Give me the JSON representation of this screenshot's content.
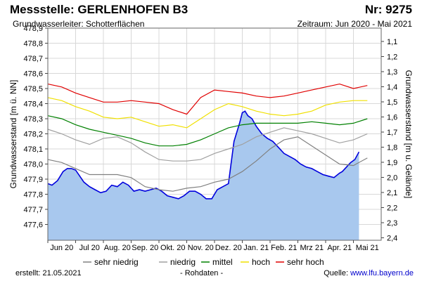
{
  "header": {
    "title": "Messstelle: GERLENHOFEN B3",
    "number": "Nr: 9275",
    "aquifer": "Grundwasserleiter:   Schotterflächen",
    "period": "Zeitraum: Jun 2020 - Mai 2021"
  },
  "footer": {
    "created": "erstellt:  21.05.2021",
    "raw": "- Rohdaten -",
    "source_label": "Quelle: ",
    "source_url": "www.lfu.bayern.de"
  },
  "colors": {
    "sehr_niedrig": "#808080",
    "niedrig": "#a0a0a0",
    "mittel": "#008000",
    "hoch": "#f0e000",
    "sehr_hoch": "#e00000",
    "measured_line": "#0000dd",
    "measured_fill": "#a8c8ee"
  },
  "chart_data": {
    "type": "area",
    "ylabel": "Grundwasserstand [m ü. NN]",
    "y2label": "Grundwasserstand [m u. Gelände]",
    "ylim": [
      477.5,
      478.9
    ],
    "y_ticks": [
      "478,9",
      "478,8",
      "478,7",
      "478,6",
      "478,5",
      "478,4",
      "478,3",
      "478,2",
      "478,1",
      "478,0",
      "477,9",
      "477,8",
      "477,7",
      "477,6"
    ],
    "y2_ticks": [
      "1,1",
      "1,2",
      "1,3",
      "1,4",
      "1,5",
      "1,6",
      "1,7",
      "1,8",
      "1,9",
      "2,0",
      "2,1",
      "2,2",
      "2,3",
      "2,4"
    ],
    "x_ticks": [
      "Jun 20",
      "Jul 20",
      "Aug. 20",
      "Sep. 20",
      "Okt. 20",
      "Nov. 20",
      "Dez. 20",
      "Jan. 21",
      "Feb. 21",
      "Mrz 21",
      "Apr. 21",
      "Mai 21"
    ],
    "grid": true,
    "legend_position": "bottom",
    "legend": [
      {
        "name": "sehr niedrig",
        "key": "sehr_niedrig"
      },
      {
        "name": "niedrig",
        "key": "niedrig"
      },
      {
        "name": "mittel",
        "key": "mittel"
      },
      {
        "name": "hoch",
        "key": "hoch"
      },
      {
        "name": "sehr hoch",
        "key": "sehr_hoch"
      }
    ],
    "x": [
      0,
      0.5,
      1,
      1.5,
      2,
      2.5,
      3,
      3.5,
      4,
      4.5,
      5,
      5.5,
      6,
      6.5,
      7,
      7.5,
      8,
      8.5,
      9,
      9.5,
      10,
      10.5,
      11,
      11.5
    ],
    "series": [
      {
        "key": "sehr_hoch",
        "values": [
          478.53,
          478.51,
          478.47,
          478.44,
          478.41,
          478.41,
          478.42,
          478.41,
          478.4,
          478.36,
          478.33,
          478.44,
          478.49,
          478.48,
          478.47,
          478.45,
          478.44,
          478.45,
          478.47,
          478.49,
          478.51,
          478.53,
          478.5,
          478.52
        ]
      },
      {
        "key": "hoch",
        "values": [
          478.44,
          478.42,
          478.38,
          478.35,
          478.31,
          478.3,
          478.31,
          478.28,
          478.25,
          478.26,
          478.24,
          478.3,
          478.36,
          478.4,
          478.38,
          478.35,
          478.33,
          478.32,
          478.33,
          478.35,
          478.39,
          478.41,
          478.42,
          478.42
        ]
      },
      {
        "key": "mittel",
        "values": [
          478.32,
          478.3,
          478.26,
          478.23,
          478.21,
          478.19,
          478.17,
          478.14,
          478.12,
          478.12,
          478.13,
          478.16,
          478.2,
          478.24,
          478.26,
          478.27,
          478.27,
          478.27,
          478.27,
          478.28,
          478.27,
          478.26,
          478.27,
          478.3
        ]
      },
      {
        "key": "niedrig",
        "values": [
          478.23,
          478.2,
          478.16,
          478.13,
          478.17,
          478.18,
          478.14,
          478.08,
          478.03,
          478.02,
          478.02,
          478.03,
          478.07,
          478.1,
          478.13,
          478.18,
          478.21,
          478.24,
          478.22,
          478.2,
          478.17,
          478.14,
          478.16,
          478.2
        ]
      },
      {
        "key": "sehr_niedrig",
        "values": [
          478.03,
          478.01,
          477.97,
          477.93,
          477.93,
          477.93,
          477.91,
          477.85,
          477.83,
          477.82,
          477.84,
          477.85,
          477.88,
          477.9,
          477.95,
          478.02,
          478.1,
          478.16,
          478.18,
          478.12,
          478.06,
          478.0,
          477.99,
          478.04
        ]
      }
    ],
    "measured": {
      "x": [
        0,
        0.15,
        0.35,
        0.55,
        0.7,
        0.85,
        1.0,
        1.15,
        1.3,
        1.5,
        1.7,
        1.9,
        2.1,
        2.3,
        2.5,
        2.7,
        2.9,
        3.1,
        3.3,
        3.5,
        3.7,
        3.9,
        4.1,
        4.3,
        4.5,
        4.7,
        4.9,
        5.1,
        5.3,
        5.5,
        5.7,
        5.9,
        6.1,
        6.3,
        6.5,
        6.7,
        6.9,
        7.0,
        7.1,
        7.2,
        7.35,
        7.5,
        7.7,
        7.9,
        8.1,
        8.3,
        8.5,
        8.7,
        8.9,
        9.1,
        9.3,
        9.5,
        9.7,
        9.9,
        10.1,
        10.3,
        10.5,
        10.6,
        10.75,
        10.9,
        11.05,
        11.2
      ],
      "values": [
        477.87,
        477.86,
        477.89,
        477.95,
        477.97,
        477.97,
        477.96,
        477.92,
        477.88,
        477.85,
        477.83,
        477.81,
        477.82,
        477.86,
        477.85,
        477.88,
        477.86,
        477.82,
        477.83,
        477.82,
        477.83,
        477.84,
        477.82,
        477.79,
        477.78,
        477.77,
        477.79,
        477.82,
        477.82,
        477.8,
        477.77,
        477.77,
        477.83,
        477.85,
        477.87,
        478.15,
        478.27,
        478.34,
        478.35,
        478.32,
        478.3,
        478.25,
        478.2,
        478.17,
        478.15,
        478.11,
        478.07,
        478.05,
        478.03,
        478.0,
        477.98,
        477.97,
        477.95,
        477.93,
        477.92,
        477.91,
        477.94,
        477.95,
        477.98,
        478.01,
        478.03,
        478.08
      ]
    }
  }
}
